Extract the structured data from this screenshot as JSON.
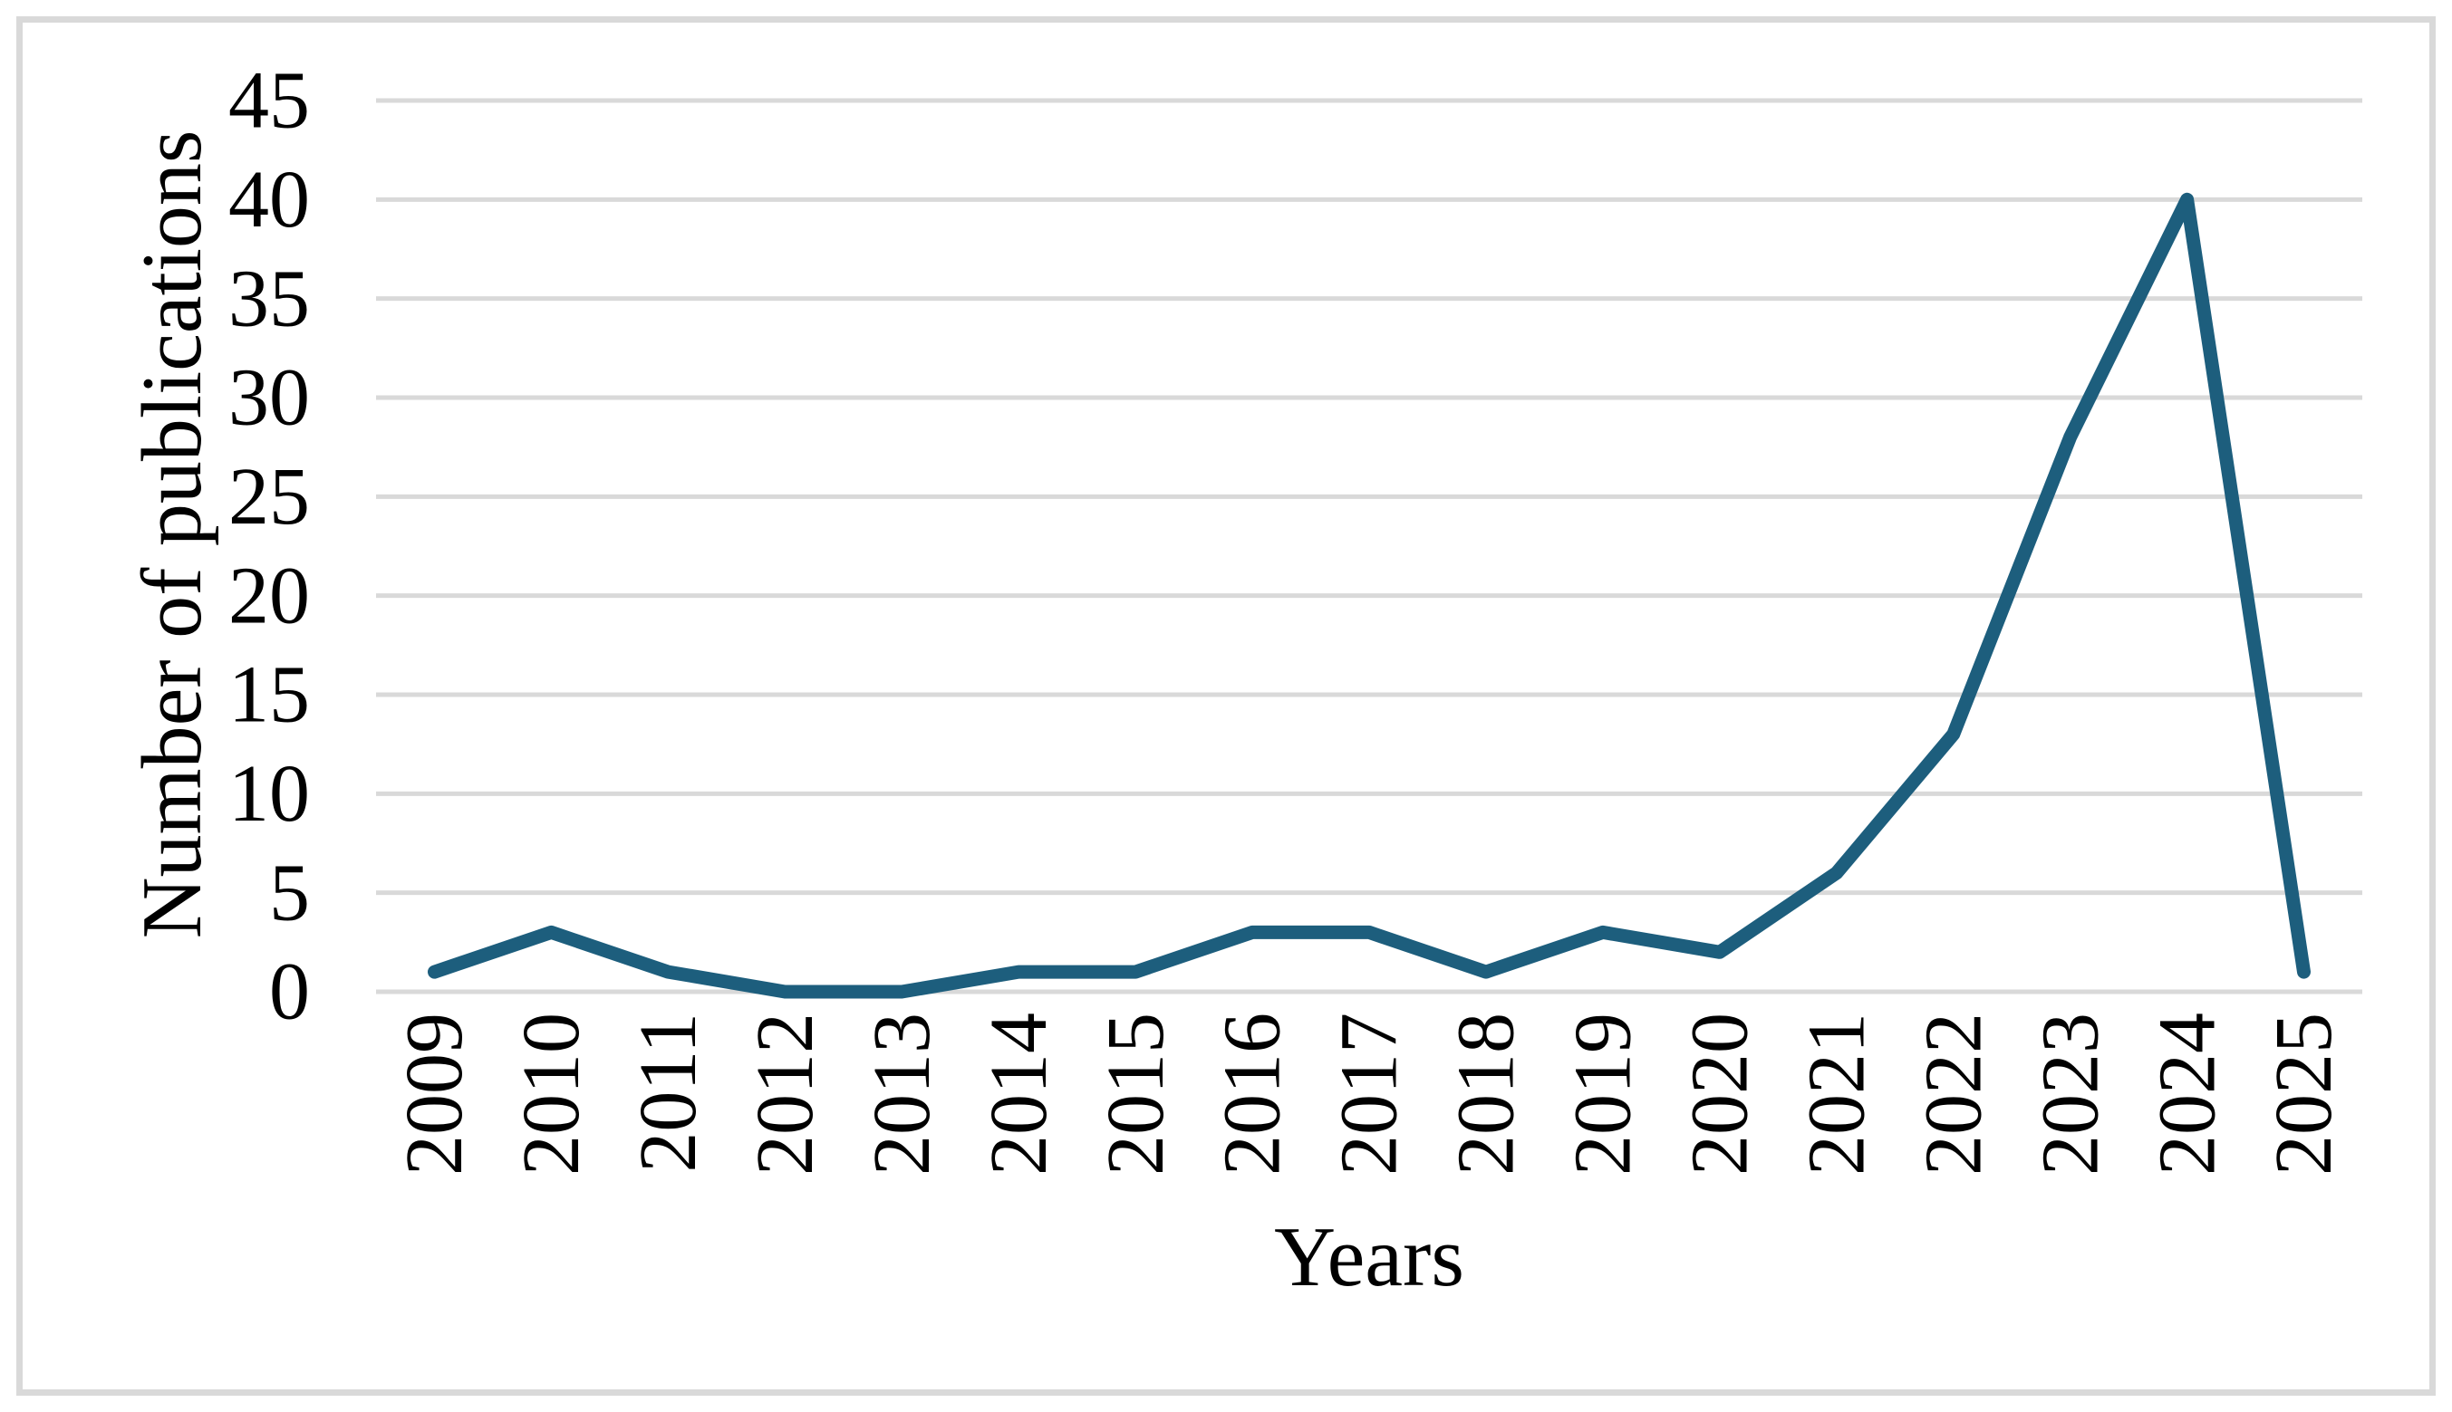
{
  "colors": {
    "line": "#1d5e7d",
    "gridline": "#d9d9d9",
    "frame": "#d9d9d9",
    "text": "#000000",
    "background": "#ffffff"
  },
  "chart_data": {
    "type": "line",
    "title": "",
    "xlabel": "Years",
    "ylabel": "Number of publications",
    "categories": [
      "2009",
      "2010",
      "2011",
      "2012",
      "2013",
      "2014",
      "2015",
      "2016",
      "2017",
      "2018",
      "2019",
      "2020",
      "2021",
      "2022",
      "2023",
      "2024",
      "2025"
    ],
    "values": [
      1,
      3,
      1,
      0,
      0,
      1,
      1,
      3,
      3,
      1,
      3,
      2,
      6,
      13,
      28,
      40,
      1
    ],
    "series_name": "Number of publications",
    "ylim": [
      0,
      45
    ],
    "yticks": [
      0,
      5,
      10,
      15,
      20,
      25,
      30,
      35,
      40,
      45
    ],
    "grid": "horizontal",
    "legend": "none",
    "x_tick_rotation_deg": 90
  }
}
